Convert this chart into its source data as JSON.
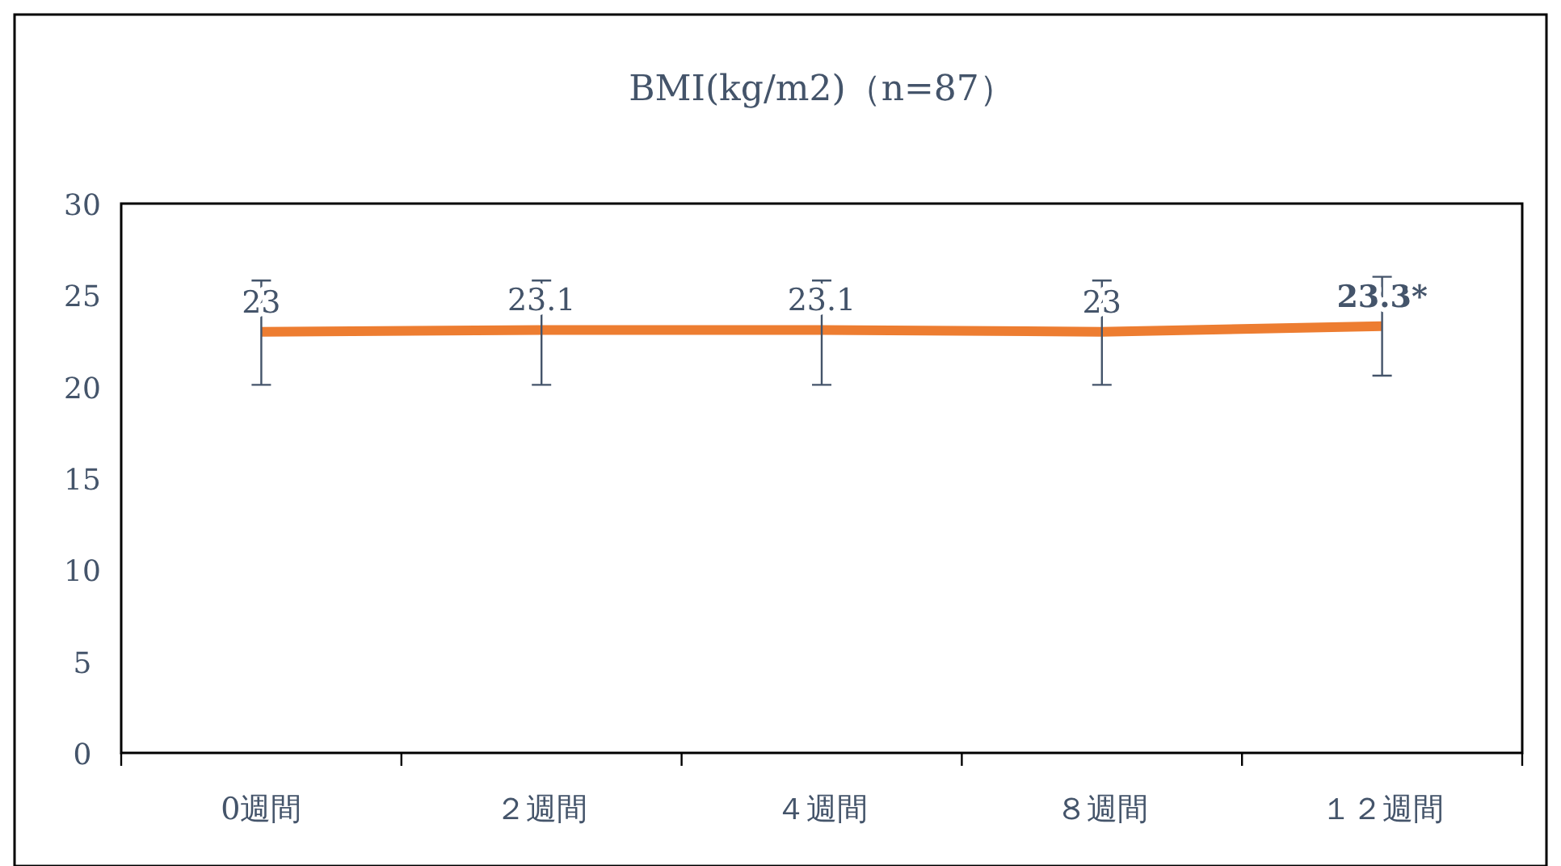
{
  "chart_data": {
    "type": "line",
    "title": "BMI(kg/m2)（n=87）",
    "categories": [
      "0週間",
      "２週間",
      "４週間",
      "８週間",
      "１２週間"
    ],
    "series": [
      {
        "color": "#ed7d31",
        "values": [
          23,
          23.1,
          23.1,
          23,
          23.3
        ],
        "errors": [
          [
            20.1,
            25.8
          ],
          [
            20.1,
            25.8
          ],
          [
            20.1,
            25.8
          ],
          [
            20.1,
            25.8
          ],
          [
            20.6,
            26.0
          ]
        ],
        "value_labels": [
          "23",
          "23.1",
          "23.1",
          "23",
          "**23.3***"
        ]
      }
    ],
    "ylim": [
      0,
      30
    ],
    "yticks": [
      0,
      5,
      10,
      15,
      20,
      25,
      30
    ],
    "grid": false,
    "marker": "none",
    "line_style": "solid"
  }
}
